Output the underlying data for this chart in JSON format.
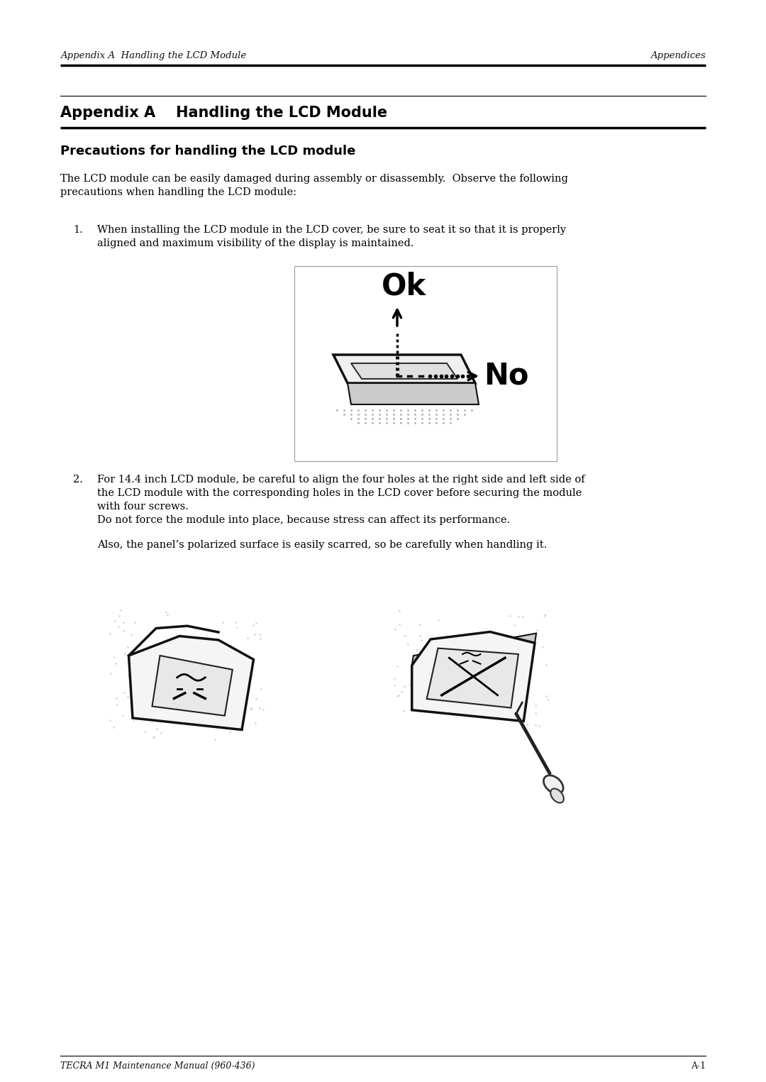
{
  "bg_color": "#ffffff",
  "header_left": "Appendix A  Handling the LCD Module",
  "header_right": "Appendices",
  "footer_left": "TECRA M1 Maintenance Manual (960-436)",
  "footer_right": "A-1",
  "section_title": "Appendix A    Handling the LCD Module",
  "subsection_title": "Precautions for handling the LCD module",
  "intro_line1": "The LCD module can be easily damaged during assembly or disassembly.  Observe the following",
  "intro_line2": "precautions when handling the LCD module:",
  "item1_line1": "When installing the LCD module in the LCD cover, be sure to seat it so that it is properly",
  "item1_line2": "aligned and maximum visibility of the display is maintained.",
  "item2_line1": "For 14.4 inch LCD module, be careful to align the four holes at the right side and left side of",
  "item2_line2": "the LCD module with the corresponding holes in the LCD cover before securing the module",
  "item2_line3": "with four screws.",
  "item2_line4": "Do not force the module into place, because stress can affect its performance.",
  "item2_line5": "Also, the panel’s polarized surface is easily scarred, so be carefully when handling it.",
  "text_color": "#000000"
}
